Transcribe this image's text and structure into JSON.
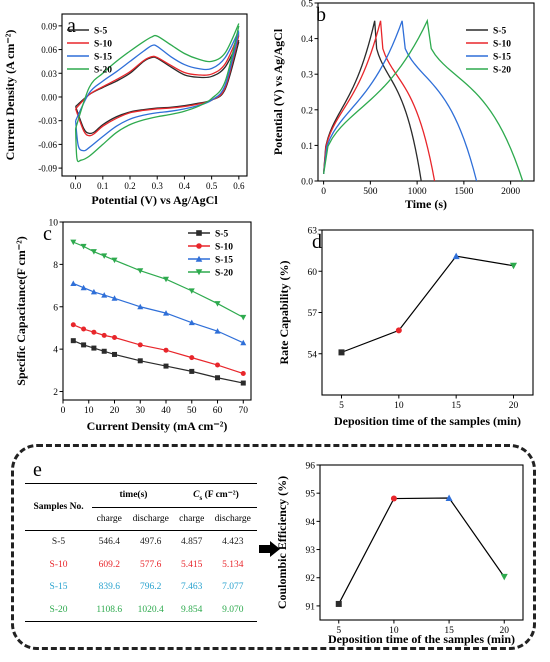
{
  "colors": {
    "S-5": "#2b2b2b",
    "S-10": "#e8262b",
    "S-15": "#2f6fd8",
    "S-20": "#2eaa4e"
  },
  "chart_data": [
    {
      "panel": "a",
      "type": "line",
      "xlabel": "Potential (V) vs Ag/AgCl",
      "ylabel": "Current Density (A cm⁻²)",
      "xlim": [
        -0.05,
        0.63
      ],
      "ylim": [
        -0.1,
        0.105
      ],
      "xticks": [
        "0.0",
        "0.1",
        "0.2",
        "0.3",
        "0.4",
        "0.5",
        "0.6"
      ],
      "yticks": [
        "0.09",
        "0.06",
        "0.03",
        "0.00",
        "-0.03",
        "-0.06",
        "-0.09"
      ],
      "legend": [
        "S-5",
        "S-10",
        "S-15",
        "S-20"
      ],
      "series": [
        {
          "name": "S-5",
          "anodic": [
            [
              0,
              -0.012
            ],
            [
              0.05,
              0.003
            ],
            [
              0.1,
              0.012
            ],
            [
              0.15,
              0.02
            ],
            [
              0.2,
              0.03
            ],
            [
              0.25,
              0.045
            ],
            [
              0.28,
              0.05
            ],
            [
              0.3,
              0.049
            ],
            [
              0.35,
              0.038
            ],
            [
              0.4,
              0.028
            ],
            [
              0.45,
              0.025
            ],
            [
              0.5,
              0.026
            ],
            [
              0.55,
              0.038
            ],
            [
              0.6,
              0.072
            ]
          ],
          "cathodic": [
            [
              0.6,
              0.07
            ],
            [
              0.55,
              0.01
            ],
            [
              0.5,
              -0.004
            ],
            [
              0.45,
              -0.008
            ],
            [
              0.4,
              -0.011
            ],
            [
              0.35,
              -0.013
            ],
            [
              0.3,
              -0.014
            ],
            [
              0.25,
              -0.016
            ],
            [
              0.2,
              -0.019
            ],
            [
              0.15,
              -0.025
            ],
            [
              0.1,
              -0.035
            ],
            [
              0.07,
              -0.044
            ],
            [
              0.05,
              -0.046
            ],
            [
              0.03,
              -0.04
            ],
            [
              0,
              -0.012
            ]
          ]
        },
        {
          "name": "S-10",
          "anodic": [
            [
              0,
              -0.015
            ],
            [
              0.05,
              0.003
            ],
            [
              0.1,
              0.013
            ],
            [
              0.15,
              0.022
            ],
            [
              0.2,
              0.032
            ],
            [
              0.25,
              0.046
            ],
            [
              0.28,
              0.051
            ],
            [
              0.3,
              0.05
            ],
            [
              0.35,
              0.04
            ],
            [
              0.4,
              0.031
            ],
            [
              0.45,
              0.028
            ],
            [
              0.5,
              0.029
            ],
            [
              0.55,
              0.042
            ],
            [
              0.6,
              0.08
            ]
          ],
          "cathodic": [
            [
              0.6,
              0.078
            ],
            [
              0.55,
              0.012
            ],
            [
              0.5,
              -0.004
            ],
            [
              0.45,
              -0.009
            ],
            [
              0.4,
              -0.012
            ],
            [
              0.35,
              -0.014
            ],
            [
              0.3,
              -0.015
            ],
            [
              0.25,
              -0.017
            ],
            [
              0.2,
              -0.02
            ],
            [
              0.15,
              -0.027
            ],
            [
              0.1,
              -0.037
            ],
            [
              0.07,
              -0.046
            ],
            [
              0.05,
              -0.049
            ],
            [
              0.03,
              -0.043
            ],
            [
              0,
              -0.015
            ]
          ]
        },
        {
          "name": "S-15",
          "anodic": [
            [
              0,
              -0.03
            ],
            [
              0.05,
              0.005
            ],
            [
              0.1,
              0.02
            ],
            [
              0.15,
              0.032
            ],
            [
              0.2,
              0.045
            ],
            [
              0.25,
              0.058
            ],
            [
              0.28,
              0.065
            ],
            [
              0.3,
              0.064
            ],
            [
              0.35,
              0.051
            ],
            [
              0.4,
              0.041
            ],
            [
              0.45,
              0.036
            ],
            [
              0.5,
              0.036
            ],
            [
              0.55,
              0.05
            ],
            [
              0.6,
              0.084
            ]
          ],
          "cathodic": [
            [
              0.6,
              0.082
            ],
            [
              0.55,
              0.015
            ],
            [
              0.5,
              -0.004
            ],
            [
              0.45,
              -0.011
            ],
            [
              0.4,
              -0.015
            ],
            [
              0.35,
              -0.018
            ],
            [
              0.3,
              -0.02
            ],
            [
              0.25,
              -0.023
            ],
            [
              0.2,
              -0.028
            ],
            [
              0.15,
              -0.037
            ],
            [
              0.1,
              -0.05
            ],
            [
              0.05,
              -0.064
            ],
            [
              0.03,
              -0.068
            ],
            [
              0.01,
              -0.062
            ],
            [
              0,
              -0.03
            ]
          ]
        },
        {
          "name": "S-20",
          "anodic": [
            [
              0,
              -0.04
            ],
            [
              0.05,
              0.012
            ],
            [
              0.1,
              0.03
            ],
            [
              0.15,
              0.045
            ],
            [
              0.2,
              0.058
            ],
            [
              0.25,
              0.07
            ],
            [
              0.28,
              0.076
            ],
            [
              0.3,
              0.077
            ],
            [
              0.35,
              0.066
            ],
            [
              0.4,
              0.055
            ],
            [
              0.45,
              0.048
            ],
            [
              0.5,
              0.045
            ],
            [
              0.55,
              0.056
            ],
            [
              0.6,
              0.093
            ]
          ],
          "cathodic": [
            [
              0.6,
              0.09
            ],
            [
              0.55,
              0.02
            ],
            [
              0.5,
              -0.002
            ],
            [
              0.45,
              -0.012
            ],
            [
              0.4,
              -0.018
            ],
            [
              0.35,
              -0.022
            ],
            [
              0.3,
              -0.025
            ],
            [
              0.25,
              -0.029
            ],
            [
              0.2,
              -0.035
            ],
            [
              0.15,
              -0.045
            ],
            [
              0.1,
              -0.06
            ],
            [
              0.05,
              -0.075
            ],
            [
              0.02,
              -0.08
            ],
            [
              0.005,
              -0.078
            ],
            [
              0,
              -0.04
            ]
          ]
        }
      ]
    },
    {
      "panel": "b",
      "type": "line",
      "xlabel": "Time (s)",
      "ylabel": "Potential (V) vs Ag/AgCl",
      "xlim": [
        -60,
        2250
      ],
      "ylim": [
        0,
        0.5
      ],
      "xticks": [
        "0",
        "500",
        "1000",
        "1500",
        "2000"
      ],
      "yticks": [
        "0.0",
        "0.1",
        "0.2",
        "0.3",
        "0.4",
        "0.5"
      ],
      "legend": [
        "S-5",
        "S-10",
        "S-15",
        "S-20"
      ],
      "series": [
        {
          "name": "S-5",
          "charge_time": 546.4,
          "discharge_time": 497.6
        },
        {
          "name": "S-10",
          "charge_time": 609.2,
          "discharge_time": 577.6
        },
        {
          "name": "S-15",
          "charge_time": 839.6,
          "discharge_time": 796.2
        },
        {
          "name": "S-20",
          "charge_time": 1108.6,
          "discharge_time": 1020.4
        }
      ],
      "vmax": 0.45
    },
    {
      "panel": "c",
      "type": "line",
      "xlabel": "Current Density (mA cm⁻²)",
      "ylabel": "Specific Capacitance(F cm⁻²)",
      "xlim": [
        0,
        73
      ],
      "ylim": [
        1.6,
        10
      ],
      "xticks": [
        "0",
        "10",
        "20",
        "30",
        "40",
        "50",
        "60",
        "70"
      ],
      "yticks": [
        "2",
        "4",
        "6",
        "8",
        "10"
      ],
      "legend": [
        "S-5",
        "S-10",
        "S-15",
        "S-20"
      ],
      "x": [
        4,
        8,
        12,
        16,
        20,
        30,
        40,
        50,
        60,
        70
      ],
      "series": [
        {
          "name": "S-5",
          "marker": "square",
          "values": [
            4.4,
            4.2,
            4.05,
            3.9,
            3.75,
            3.45,
            3.2,
            2.95,
            2.65,
            2.4
          ]
        },
        {
          "name": "S-10",
          "marker": "circle",
          "values": [
            5.15,
            4.95,
            4.8,
            4.65,
            4.55,
            4.2,
            3.95,
            3.6,
            3.25,
            2.85
          ]
        },
        {
          "name": "S-15",
          "marker": "triangle-up",
          "values": [
            7.1,
            6.9,
            6.7,
            6.55,
            6.4,
            6.0,
            5.7,
            5.25,
            4.85,
            4.3
          ]
        },
        {
          "name": "S-20",
          "marker": "triangle-down",
          "values": [
            9.05,
            8.85,
            8.6,
            8.4,
            8.2,
            7.7,
            7.3,
            6.75,
            6.15,
            5.5
          ]
        }
      ]
    },
    {
      "panel": "d",
      "type": "line",
      "xlabel": "Deposition time of the samples (min)",
      "ylabel": "Rate Capability (%)",
      "xlim": [
        3.3,
        21.7
      ],
      "ylim": [
        51,
        63
      ],
      "xticks": [
        "5",
        "10",
        "15",
        "20"
      ],
      "yticks": [
        "54",
        "57",
        "60",
        "63"
      ],
      "x": [
        5,
        10,
        15,
        20
      ],
      "values": [
        54.1,
        55.7,
        61.1,
        60.4
      ],
      "markers": [
        "square",
        "circle",
        "triangle-up",
        "triangle-down"
      ]
    },
    {
      "panel": "e",
      "type": "line",
      "xlabel": "Deposition time of the samples (min)",
      "ylabel": "Coulombic Efficiency (%)",
      "xlim": [
        3.3,
        21.7
      ],
      "ylim": [
        90.5,
        96
      ],
      "xticks": [
        "5",
        "10",
        "15",
        "20"
      ],
      "yticks": [
        "91",
        "92",
        "93",
        "94",
        "95",
        "96"
      ],
      "x": [
        5,
        10,
        15,
        20
      ],
      "values": [
        91.07,
        94.81,
        94.83,
        92.03
      ],
      "markers": [
        "square",
        "circle",
        "triangle-up",
        "triangle-down"
      ]
    }
  ],
  "panel_letters": {
    "a": "a",
    "b": "b",
    "c": "c",
    "d": "d",
    "e": "e"
  },
  "table": {
    "header1": {
      "samples": "Samples No.",
      "time": "time(s)",
      "cs": "F cm⁻²)"
    },
    "header2": [
      "charge",
      "discharge",
      "charge",
      "discharge"
    ],
    "rows": [
      {
        "name": "S-5",
        "values": [
          "546.4",
          "497.6",
          "4.857",
          "4.423"
        ]
      },
      {
        "name": "S-10",
        "values": [
          "609.2",
          "577.6",
          "5.415",
          "5.134"
        ]
      },
      {
        "name": "S-15",
        "values": [
          "839.6",
          "796.2",
          "7.463",
          "7.077"
        ]
      },
      {
        "name": "S-20",
        "values": [
          "1108.6",
          "1020.4",
          "9.854",
          "9.070"
        ]
      }
    ]
  }
}
